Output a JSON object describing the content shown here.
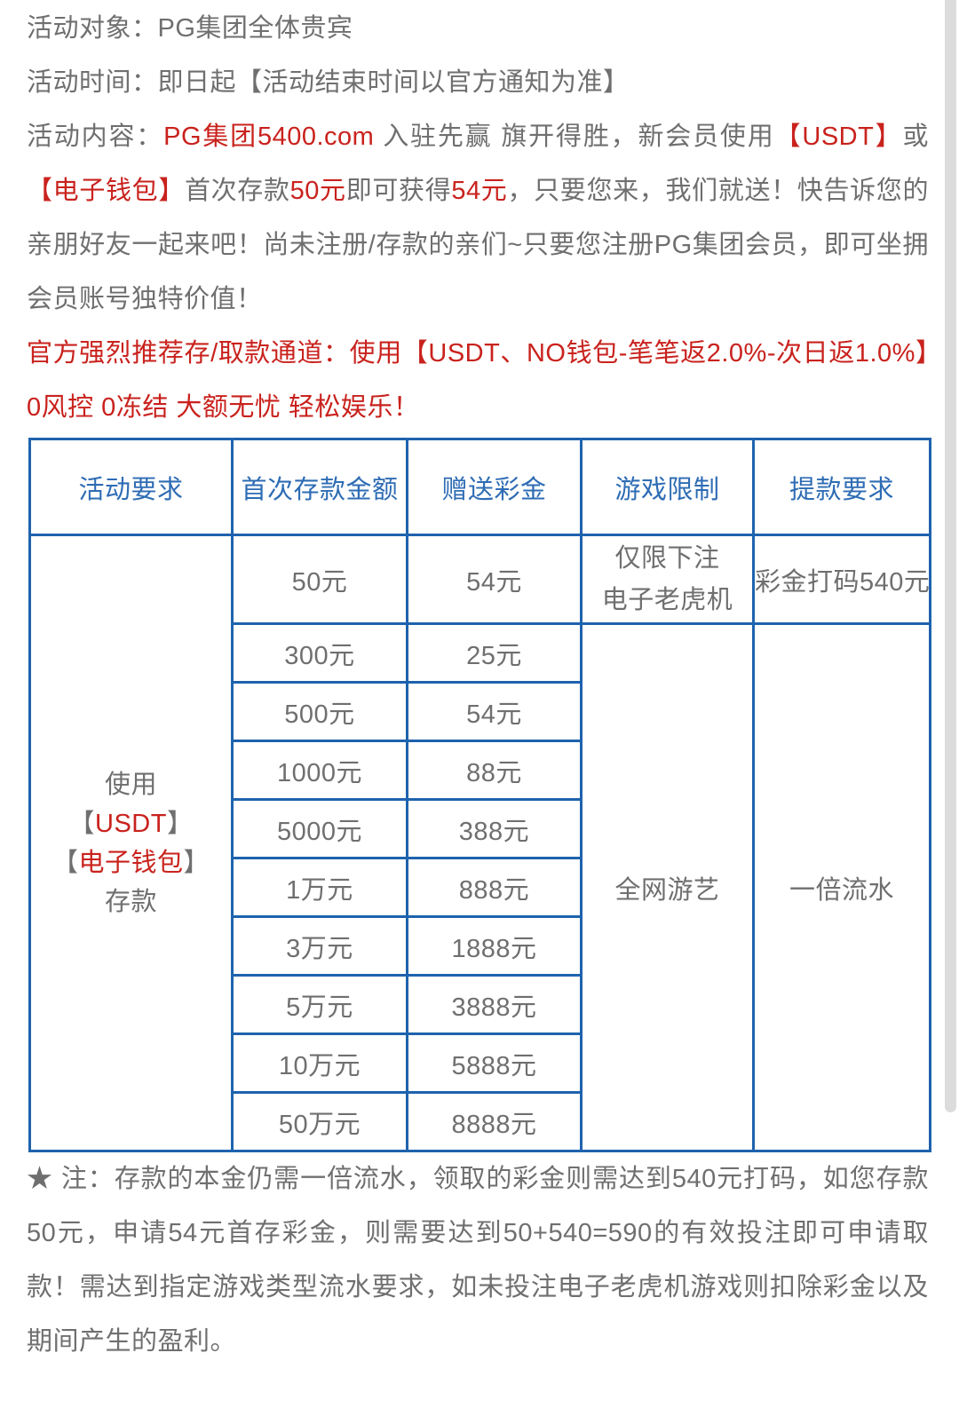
{
  "colors": {
    "text_gray": "#6f6f6f",
    "red": "#c9221d",
    "table_border_blue": "#1e63ae",
    "table_header_blue": "#2e6cb4",
    "scrollbar_gray": "#dcdcdc"
  },
  "intro": {
    "target": {
      "segments": [
        {
          "t": "活动对象：PG集团全体贵宾"
        }
      ]
    },
    "time": {
      "segments": [
        {
          "t": "活动时间：即日起【活动结束时间以官方通知为准】"
        }
      ]
    },
    "content": {
      "segments": [
        {
          "t": "活动内容："
        },
        {
          "t": "PG集团5400.com ",
          "red": true
        },
        {
          "t": "入驻先赢 旗开得胜，新会员使用"
        },
        {
          "t": "【USDT】",
          "red": true
        },
        {
          "t": "或"
        },
        {
          "t": "【电子钱包】",
          "red": true
        },
        {
          "t": "首次存款"
        },
        {
          "t": "50元",
          "red": true
        },
        {
          "t": "即可获得"
        },
        {
          "t": "54元",
          "red": true
        },
        {
          "t": "，只要您来，我们就送！快告诉您的亲朋好友一起来吧！尚未注册/存款的亲们~只要您注册PG集团会员，即可坐拥会员账号独特价值！"
        }
      ]
    },
    "recommend": {
      "segments": [
        {
          "t": "官方强烈推荐存/取款通道：使用【USDT、NO钱包-笔笔返2.0%-次日返1.0%】0风控 0冻结 大额无忧 轻松娱乐！",
          "red": true
        }
      ]
    }
  },
  "promo_table": {
    "headers": [
      "活动要求",
      "首次存款金额",
      "赠送彩金",
      "游戏限制",
      "提款要求"
    ],
    "requirement": {
      "lines": [
        [
          {
            "t": "使用"
          }
        ],
        [
          {
            "t": "【"
          },
          {
            "t": "USDT",
            "red": true
          },
          {
            "t": "】"
          }
        ],
        [
          {
            "t": "【"
          },
          {
            "t": "电子钱包",
            "red": true
          },
          {
            "t": "】"
          }
        ],
        [
          {
            "t": "存款"
          }
        ]
      ]
    },
    "first_row": {
      "deposit": "50元",
      "bonus": "54元",
      "game_limit_line1": "仅限下注",
      "game_limit_line2": "电子老虎机",
      "withdraw": "彩金打码540元"
    },
    "tier_rows": [
      {
        "deposit": "300元",
        "bonus": "25元"
      },
      {
        "deposit": "500元",
        "bonus": "54元"
      },
      {
        "deposit": "1000元",
        "bonus": "88元"
      },
      {
        "deposit": "5000元",
        "bonus": "388元"
      },
      {
        "deposit": "1万元",
        "bonus": "888元"
      },
      {
        "deposit": "3万元",
        "bonus": "1888元"
      },
      {
        "deposit": "5万元",
        "bonus": "3888元"
      },
      {
        "deposit": "10万元",
        "bonus": "5888元"
      },
      {
        "deposit": "50万元",
        "bonus": "8888元"
      }
    ],
    "merged_game_limit": "全网游艺",
    "merged_withdraw": "一倍流水"
  },
  "note": {
    "segments": [
      {
        "t": "★ 注：存款的本金仍需一倍流水，领取的彩金则需达到540元打码，如您存款50元，申请54元首存彩金，则需要达到50+540=590的有效投注即可申请取款！需达到指定游戏类型流水要求，如未投注电子老虎机游戏则扣除彩金以及期间产生的盈利。"
      }
    ]
  }
}
